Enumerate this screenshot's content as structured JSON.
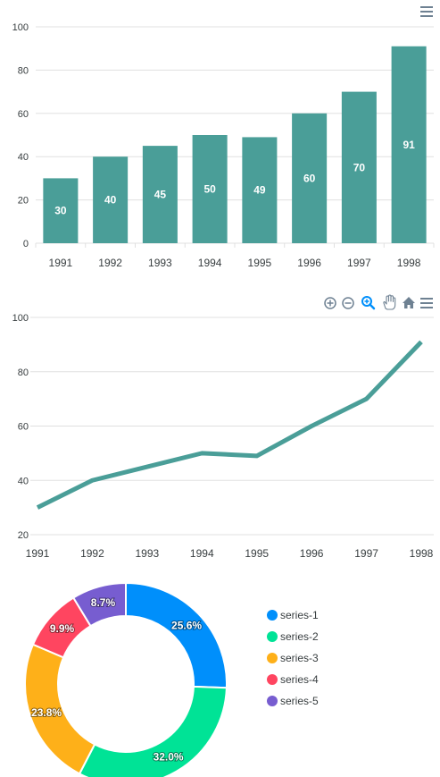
{
  "colors": {
    "bar": "#4a9e98",
    "line": "#4a9e98",
    "toolbar_active": "#008ffb",
    "toolbar": "#6e8192"
  },
  "chart_data": [
    {
      "type": "bar",
      "categories": [
        "1991",
        "1992",
        "1993",
        "1994",
        "1995",
        "1996",
        "1997",
        "1998"
      ],
      "values": [
        30,
        40,
        45,
        50,
        49,
        60,
        70,
        91
      ],
      "data_labels": [
        "30",
        "40",
        "45",
        "50",
        "49",
        "60",
        "70",
        "91"
      ],
      "ylim": [
        0,
        100
      ],
      "yticks": [
        "0",
        "20",
        "40",
        "60",
        "80",
        "100"
      ],
      "ytick_values": [
        0,
        20,
        40,
        60,
        80,
        100
      ],
      "title": "",
      "xlabel": "",
      "ylabel": ""
    },
    {
      "type": "line",
      "categories": [
        "1991",
        "1992",
        "1993",
        "1994",
        "1995",
        "1996",
        "1997",
        "1998"
      ],
      "values": [
        30,
        40,
        45,
        50,
        49,
        60,
        70,
        91
      ],
      "ylim": [
        20,
        100
      ],
      "yticks": [
        "20",
        "40",
        "60",
        "80",
        "100"
      ],
      "ytick_values": [
        20,
        40,
        60,
        80,
        100
      ],
      "title": "",
      "xlabel": "",
      "ylabel": ""
    },
    {
      "type": "pie",
      "variant": "donut",
      "series": [
        {
          "name": "series-1",
          "value": 25.6,
          "label": "25.6%",
          "color": "#008ffb"
        },
        {
          "name": "series-2",
          "value": 32.0,
          "label": "32.0%",
          "color": "#00e396"
        },
        {
          "name": "series-3",
          "value": 23.8,
          "label": "23.8%",
          "color": "#feb019"
        },
        {
          "name": "series-4",
          "value": 9.9,
          "label": "9.9%",
          "color": "#ff4560"
        },
        {
          "name": "series-5",
          "value": 8.7,
          "label": "8.7%",
          "color": "#775dd0"
        }
      ],
      "legend_position": "right"
    }
  ]
}
